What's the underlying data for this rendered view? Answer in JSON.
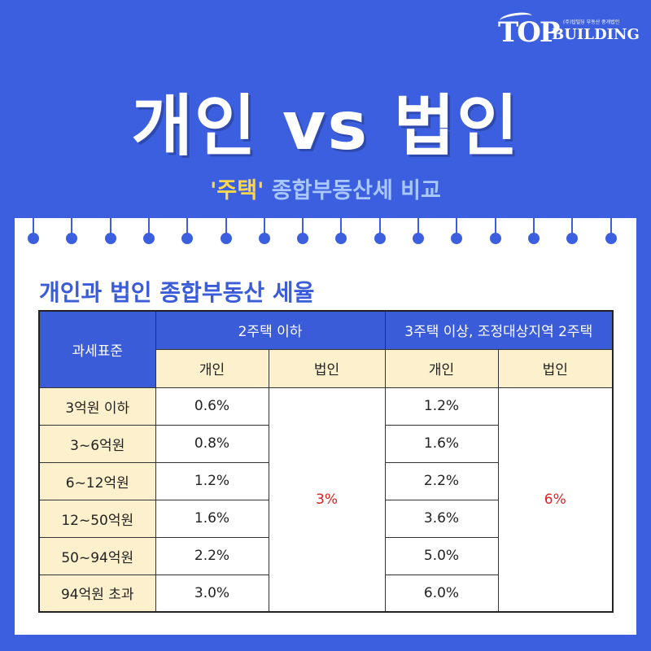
{
  "logo": {
    "mark": "TOP",
    "word": "BUILDING",
    "tagline": "(주)탑빌딩 부동산 중개법인"
  },
  "title": "개인 vs 법인",
  "subtitle": {
    "highlight": "'주택'",
    "rest": " 종합부동산세 비교"
  },
  "section_title": "개인과 법인 종합부동산 세율",
  "table": {
    "corner": "과세표준",
    "group1": "2주택 이하",
    "group2": "3주택 이상, 조정대상지역 2주택",
    "sub_individual": "개인",
    "sub_corporate": "법인",
    "rows": [
      {
        "bracket": "3억원 이하",
        "g1_ind": "0.6%",
        "g2_ind": "1.2%"
      },
      {
        "bracket": "3~6억원",
        "g1_ind": "0.8%",
        "g2_ind": "1.6%"
      },
      {
        "bracket": "6~12억원",
        "g1_ind": "1.2%",
        "g2_ind": "2.2%"
      },
      {
        "bracket": "12~50억원",
        "g1_ind": "1.6%",
        "g2_ind": "3.6%"
      },
      {
        "bracket": "50~94억원",
        "g1_ind": "2.2%",
        "g2_ind": "5.0%"
      },
      {
        "bracket": "94억원 초과",
        "g1_ind": "3.0%",
        "g2_ind": "6.0%"
      }
    ],
    "g1_corp": "3%",
    "g2_corp": "6%"
  },
  "colors": {
    "background": "#3c5fe0",
    "header_blue": "#3a5cd8",
    "header_cream": "#fdf0cc",
    "highlight_yellow": "#ffd84a",
    "corporate_red": "#e02020"
  }
}
